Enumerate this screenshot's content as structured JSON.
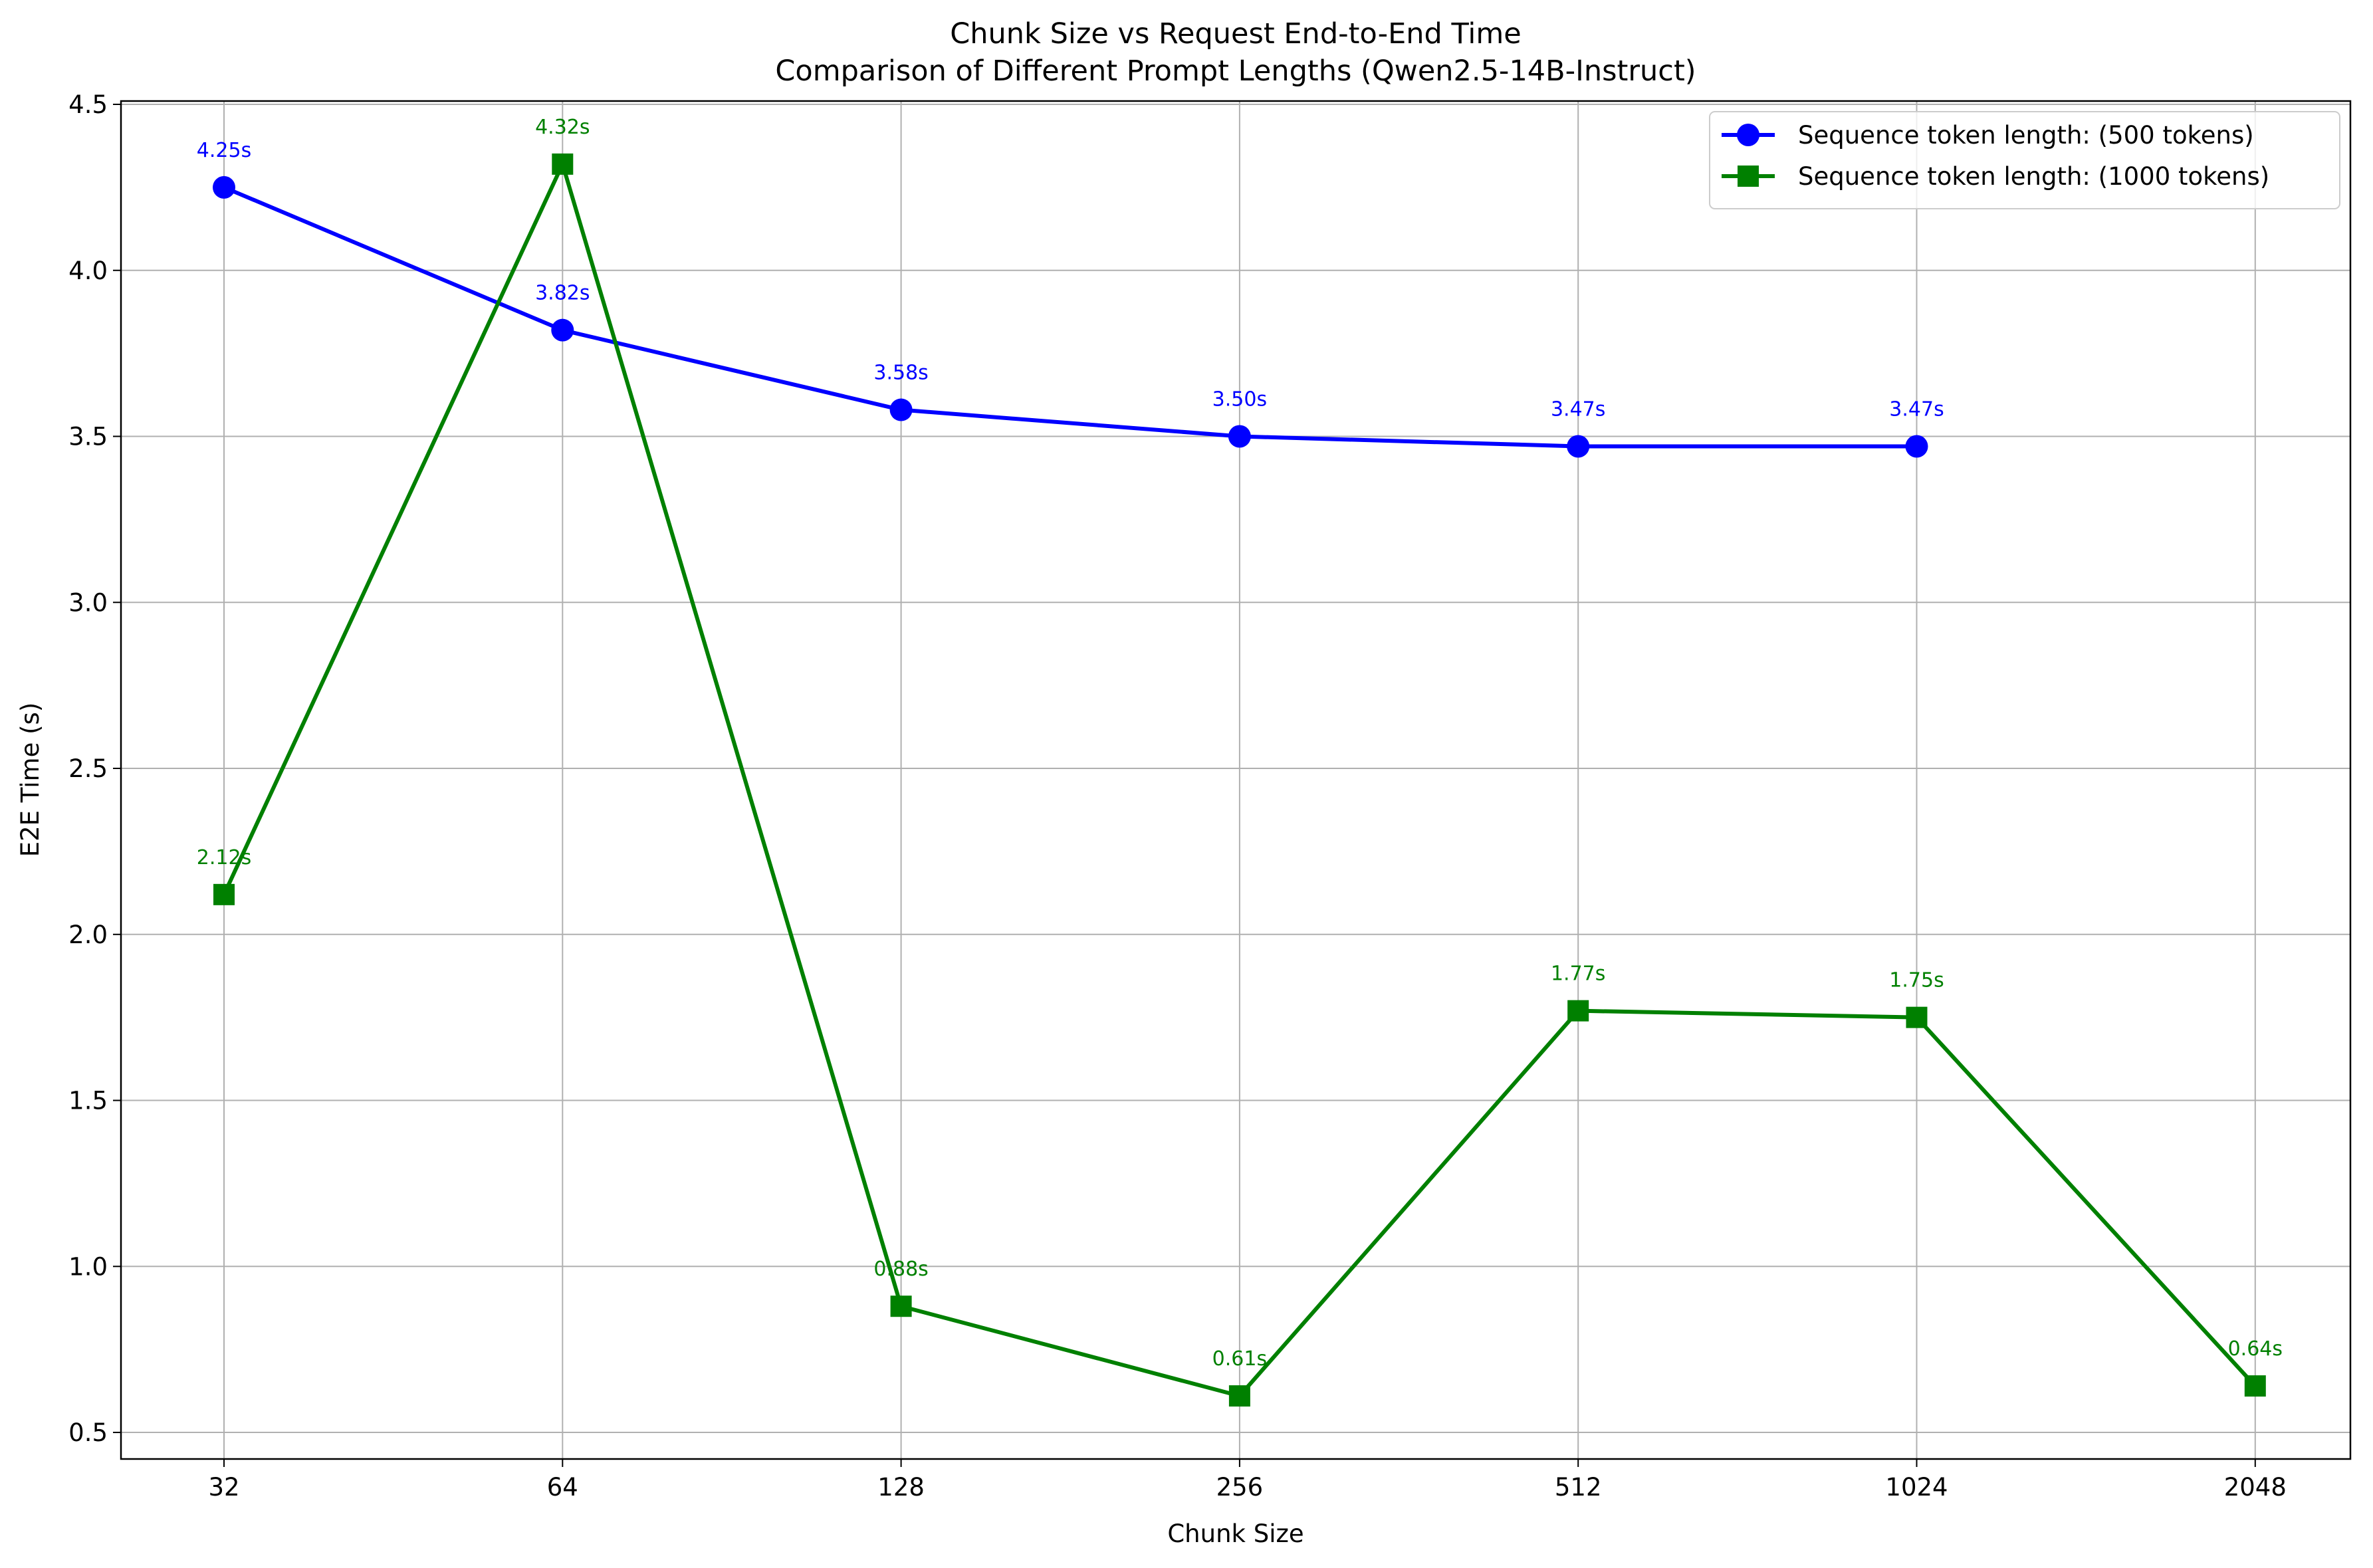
{
  "chart_data": {
    "type": "line",
    "title": "Chunk Size vs Request End-to-End Time",
    "subtitle": "Comparison of Different Prompt Lengths (Qwen2.5-14B-Instruct)",
    "xlabel": "Chunk Size",
    "ylabel": "E2E Time (s)",
    "categories": [
      "32",
      "64",
      "128",
      "256",
      "512",
      "1024",
      "2048"
    ],
    "ylim": [
      0.42,
      4.51
    ],
    "yticks": [
      "0.5",
      "1.0",
      "1.5",
      "2.0",
      "2.5",
      "3.0",
      "3.5",
      "4.0",
      "4.5"
    ],
    "ytick_values": [
      0.5,
      1.0,
      1.5,
      2.0,
      2.5,
      3.0,
      3.5,
      4.0,
      4.5
    ],
    "grid": true,
    "legend_position": "top-right",
    "series": [
      {
        "name": "Sequence token length: (500 tokens)",
        "color": "#0000ff",
        "marker": "circle",
        "values": [
          4.25,
          3.82,
          3.58,
          3.5,
          3.47,
          3.47,
          null
        ],
        "labels": [
          "4.25s",
          "3.82s",
          "3.58s",
          "3.50s",
          "3.47s",
          "3.47s",
          null
        ]
      },
      {
        "name": "Sequence token length: (1000 tokens)",
        "color": "#008000",
        "marker": "square",
        "values": [
          2.12,
          4.32,
          0.88,
          0.61,
          1.77,
          1.75,
          0.64
        ],
        "labels": [
          "2.12s",
          "4.32s",
          "0.88s",
          "0.61s",
          "1.77s",
          "1.75s",
          "0.64s"
        ]
      }
    ]
  }
}
